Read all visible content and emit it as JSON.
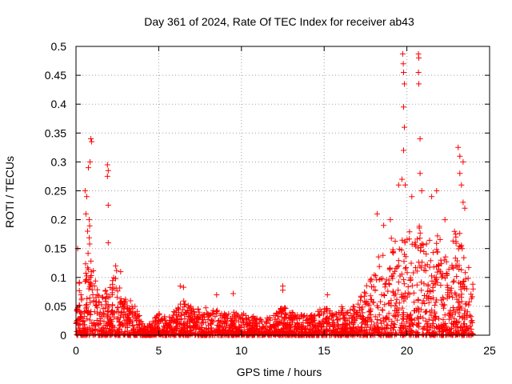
{
  "chart_data": {
    "type": "scatter",
    "title": "Day 361 of 2024, Rate Of TEC Index for receiver ab43",
    "xlabel": "GPS time / hours",
    "ylabel": "ROTI / TECUs",
    "xlim": [
      0,
      25
    ],
    "ylim": [
      0,
      0.5
    ],
    "x_ticks": [
      "0",
      "5",
      "10",
      "15",
      "20",
      "25"
    ],
    "y_ticks": [
      "0",
      "0.05",
      "0.1",
      "0.15",
      "0.2",
      "0.25",
      "0.3",
      "0.35",
      "0.4",
      "0.45",
      "0.5"
    ],
    "grid": true,
    "marker": "+",
    "color": "#ff0000",
    "envelope": {
      "x": [
        0.0,
        0.3,
        0.6,
        0.8,
        1.0,
        1.3,
        1.6,
        1.9,
        2.2,
        2.5,
        2.8,
        3.2,
        3.6,
        4.0,
        4.5,
        5.0,
        5.5,
        6.0,
        6.5,
        7.0,
        8.0,
        9.0,
        10.0,
        11.0,
        12.0,
        12.5,
        13.0,
        14.0,
        14.5,
        15.0,
        15.5,
        16.0,
        16.5,
        17.0,
        17.5,
        18.0,
        18.5,
        19.0,
        19.5,
        20.0,
        20.5,
        21.0,
        21.5,
        22.0,
        22.5,
        23.0,
        23.5,
        24.0
      ],
      "y": [
        0.11,
        0.1,
        0.13,
        0.2,
        0.12,
        0.08,
        0.07,
        0.09,
        0.1,
        0.12,
        0.07,
        0.06,
        0.06,
        0.02,
        0.02,
        0.04,
        0.03,
        0.045,
        0.06,
        0.05,
        0.05,
        0.04,
        0.04,
        0.03,
        0.035,
        0.05,
        0.04,
        0.035,
        0.04,
        0.05,
        0.04,
        0.05,
        0.045,
        0.06,
        0.08,
        0.12,
        0.15,
        0.17,
        0.16,
        0.18,
        0.2,
        0.18,
        0.16,
        0.18,
        0.14,
        0.2,
        0.15,
        0.1
      ]
    },
    "outliers": [
      {
        "x": 0.1,
        "y": 0.15
      },
      {
        "x": 0.55,
        "y": 0.25
      },
      {
        "x": 0.65,
        "y": 0.24
      },
      {
        "x": 0.75,
        "y": 0.29
      },
      {
        "x": 0.85,
        "y": 0.3
      },
      {
        "x": 0.9,
        "y": 0.34
      },
      {
        "x": 0.95,
        "y": 0.335
      },
      {
        "x": 0.8,
        "y": 0.2
      },
      {
        "x": 0.6,
        "y": 0.21
      },
      {
        "x": 0.7,
        "y": 0.18
      },
      {
        "x": 1.9,
        "y": 0.295
      },
      {
        "x": 1.95,
        "y": 0.285
      },
      {
        "x": 1.9,
        "y": 0.275
      },
      {
        "x": 1.95,
        "y": 0.225
      },
      {
        "x": 1.95,
        "y": 0.16
      },
      {
        "x": 2.4,
        "y": 0.12
      },
      {
        "x": 2.7,
        "y": 0.11
      },
      {
        "x": 6.3,
        "y": 0.085
      },
      {
        "x": 6.5,
        "y": 0.083
      },
      {
        "x": 8.5,
        "y": 0.07
      },
      {
        "x": 9.5,
        "y": 0.072
      },
      {
        "x": 12.5,
        "y": 0.085
      },
      {
        "x": 12.5,
        "y": 0.078
      },
      {
        "x": 15.2,
        "y": 0.07
      },
      {
        "x": 18.2,
        "y": 0.21
      },
      {
        "x": 18.6,
        "y": 0.19
      },
      {
        "x": 19.0,
        "y": 0.2
      },
      {
        "x": 19.5,
        "y": 0.26
      },
      {
        "x": 19.7,
        "y": 0.27
      },
      {
        "x": 19.75,
        "y": 0.487
      },
      {
        "x": 19.78,
        "y": 0.47
      },
      {
        "x": 19.8,
        "y": 0.455
      },
      {
        "x": 19.85,
        "y": 0.435
      },
      {
        "x": 19.8,
        "y": 0.395
      },
      {
        "x": 19.85,
        "y": 0.36
      },
      {
        "x": 19.8,
        "y": 0.32
      },
      {
        "x": 19.9,
        "y": 0.26
      },
      {
        "x": 20.3,
        "y": 0.24
      },
      {
        "x": 20.7,
        "y": 0.487
      },
      {
        "x": 20.72,
        "y": 0.48
      },
      {
        "x": 20.7,
        "y": 0.455
      },
      {
        "x": 20.72,
        "y": 0.435
      },
      {
        "x": 20.8,
        "y": 0.34
      },
      {
        "x": 20.8,
        "y": 0.28
      },
      {
        "x": 20.9,
        "y": 0.25
      },
      {
        "x": 21.5,
        "y": 0.24
      },
      {
        "x": 21.8,
        "y": 0.25
      },
      {
        "x": 22.3,
        "y": 0.2
      },
      {
        "x": 23.1,
        "y": 0.325
      },
      {
        "x": 23.2,
        "y": 0.31
      },
      {
        "x": 23.2,
        "y": 0.28
      },
      {
        "x": 23.3,
        "y": 0.26
      },
      {
        "x": 23.4,
        "y": 0.23
      },
      {
        "x": 23.5,
        "y": 0.22
      },
      {
        "x": 23.4,
        "y": 0.3
      },
      {
        "x": 0.2,
        "y": 0.09
      },
      {
        "x": 0.3,
        "y": 0.07
      },
      {
        "x": 24.0,
        "y": 0.08
      }
    ]
  }
}
